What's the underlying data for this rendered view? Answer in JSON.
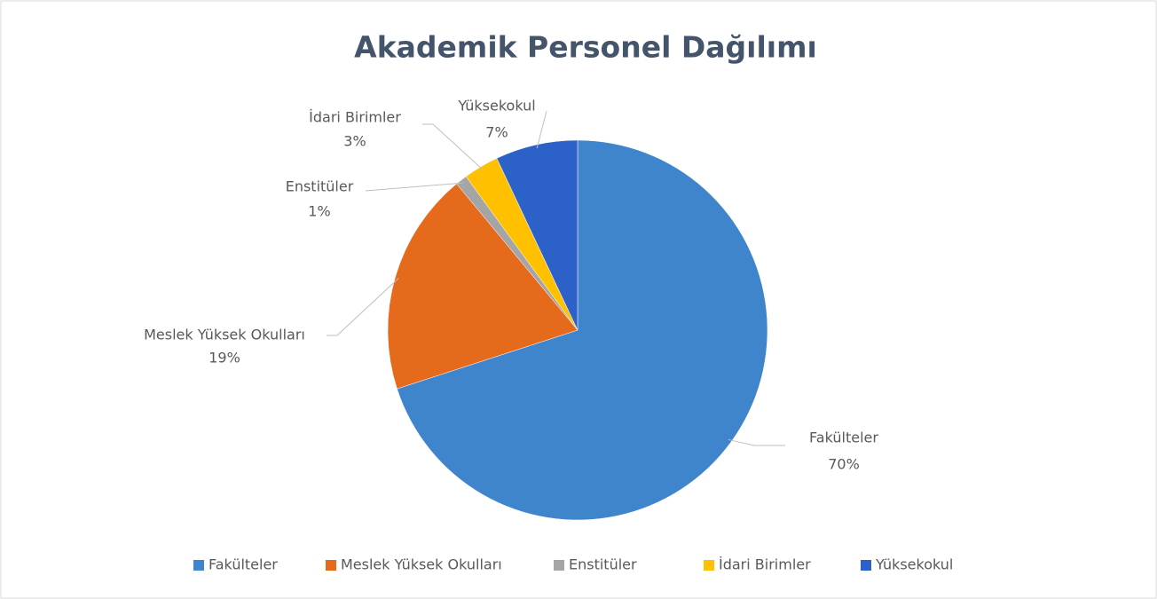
{
  "chart_data": {
    "type": "pie",
    "title": "Akademik Personel Dağılımı",
    "categories": [
      "Fakülteler",
      "Meslek Yüksek Okulları",
      "Enstitüler",
      "İdari Birimler",
      "Yüksekokul"
    ],
    "values": [
      70,
      19,
      1,
      3,
      7
    ],
    "value_labels": [
      "70%",
      "19%",
      "1%",
      "3%",
      "7%"
    ],
    "colors": [
      "#3f85cc",
      "#e56a1c",
      "#a5a5a5",
      "#ffc000",
      "#2c62c8"
    ],
    "legend": "bottom"
  }
}
